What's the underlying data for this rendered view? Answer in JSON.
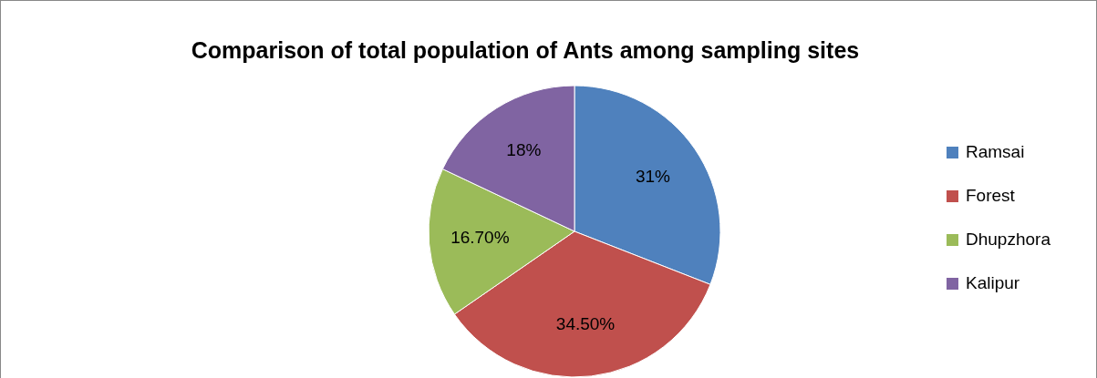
{
  "chart_data": {
    "type": "pie",
    "title": "Comparison of total population of Ants among sampling sites",
    "categories": [
      "Ramsai",
      "Forest",
      "Dhupzhora",
      "Kalipur"
    ],
    "values": [
      31,
      34.5,
      16.7,
      18
    ],
    "value_labels": [
      "31%",
      "34.50%",
      "16.70%",
      "18%"
    ],
    "colors": [
      "#4f81bd",
      "#c0504d",
      "#9bbb59",
      "#8064a2"
    ],
    "legend": "right"
  }
}
